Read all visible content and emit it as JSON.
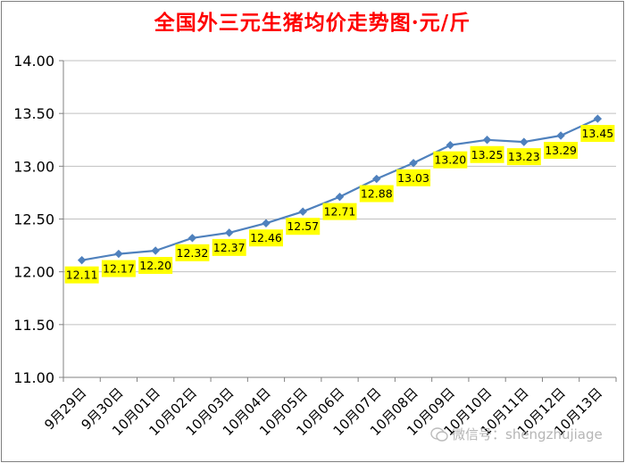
{
  "chart_data": {
    "type": "line",
    "title": "全国外三元生猪均价走势图·元/斤",
    "categories": [
      "9月29日",
      "9月30日",
      "10月01日",
      "10月02日",
      "10月03日",
      "10月04日",
      "10月05日",
      "10月06日",
      "10月07日",
      "10月08日",
      "10月09日",
      "10月10日",
      "10月11日",
      "10月12日",
      "10月13日"
    ],
    "values": [
      12.11,
      12.17,
      12.2,
      12.32,
      12.37,
      12.46,
      12.57,
      12.71,
      12.88,
      13.03,
      13.2,
      13.25,
      13.23,
      13.29,
      13.45
    ],
    "data_labels": [
      "12.11",
      "12.17",
      "12.20",
      "12.32",
      "12.37",
      "12.46",
      "12.57",
      "12.71",
      "12.88",
      "13.03",
      "13.20",
      "13.25",
      "13.23",
      "13.29",
      "13.45"
    ],
    "yticks": [
      "14.00",
      "13.50",
      "13.00",
      "12.50",
      "12.00",
      "11.50",
      "11.00"
    ],
    "ylim": [
      11.0,
      14.0
    ],
    "grid": true,
    "colors": {
      "line": "#4f81bd",
      "label_bg": "#ffff00",
      "title": "#ff0000",
      "grid": "#c0c0c0"
    }
  },
  "watermark": {
    "text": "微信号：shengzhujiage",
    "icon": "wechat-icon"
  }
}
